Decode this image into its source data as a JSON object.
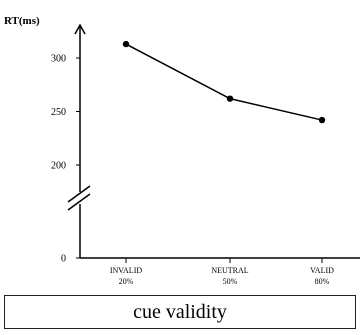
{
  "chart_data": {
    "type": "line",
    "ylabel": "RT(ms)",
    "xlabel": "cue validity",
    "categories": [
      "INVALID",
      "NEUTRAL",
      "VALID"
    ],
    "category_sublabels": [
      "20%",
      "50%",
      "80%"
    ],
    "series": [
      {
        "values": [
          313,
          262,
          242
        ]
      }
    ],
    "y_ticks": [
      300,
      250,
      200,
      0
    ],
    "y_axis_break": true,
    "grid": false,
    "legend": "none",
    "colors": {
      "line": "#000000",
      "marker": "#000000"
    }
  }
}
